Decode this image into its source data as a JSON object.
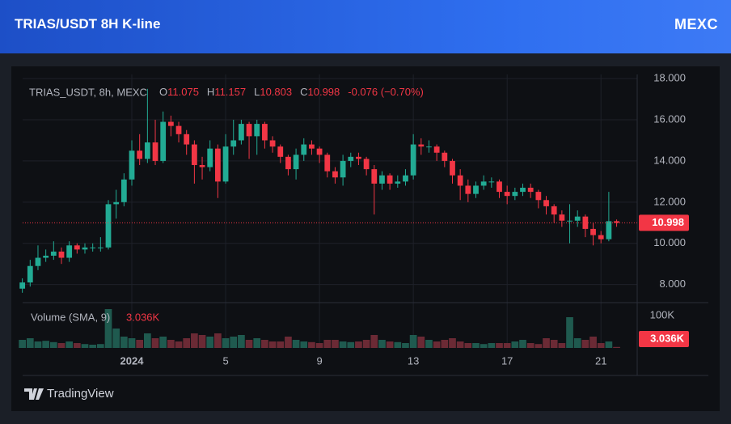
{
  "header": {
    "title": "TRIAS/USDT 8H K-line",
    "brand": "MEXC"
  },
  "chart_data": {
    "type": "candlestick",
    "symbol_label": "TRIAS_USDT, 8h, MEXC",
    "ohlc_letters": [
      "O",
      "H",
      "L",
      "C"
    ],
    "change_label": "-0.076 (−0.70%)",
    "up_color": "#22ab94",
    "down_color": "#f23645",
    "up_volume_color": "#1f5a4f",
    "down_volume_color": "#6b2a35",
    "open": [
      7.8,
      8.1,
      8.9,
      9.3,
      9.4,
      9.6,
      9.3,
      9.9,
      9.7,
      9.8,
      9.8,
      9.8,
      11.9,
      12.0,
      13.1,
      14.5,
      14.1,
      14.9,
      14.0,
      15.9,
      15.7,
      15.3,
      14.8,
      13.8,
      13.7,
      14.6,
      13.0,
      14.7,
      15.0,
      15.8,
      15.2,
      15.8,
      15.0,
      14.7,
      14.2,
      13.6,
      14.3,
      14.8,
      14.6,
      14.3,
      13.5,
      13.2,
      14.0,
      14.2,
      14.1,
      13.6,
      12.9,
      13.3,
      12.9,
      13.0,
      13.3,
      14.8,
      14.7,
      14.7,
      14.4,
      14.0,
      13.3,
      12.8,
      12.4,
      12.8,
      13.0,
      13.0,
      12.5,
      12.3,
      12.5,
      12.7,
      12.5,
      12.1,
      11.8,
      11.4,
      11.1,
      11.1,
      11.3,
      10.7,
      10.4,
      10.2,
      11.075
    ],
    "high": [
      8.3,
      9.2,
      9.9,
      9.7,
      10.1,
      9.8,
      10.1,
      10.0,
      10.0,
      10.0,
      10.3,
      12.1,
      12.6,
      13.4,
      15.0,
      15.3,
      17.5,
      16.0,
      16.4,
      16.2,
      15.9,
      15.5,
      15.0,
      14.2,
      15.0,
      14.8,
      15.3,
      16.0,
      16.0,
      15.9,
      16.0,
      15.9,
      15.2,
      14.8,
      14.3,
      14.6,
      15.1,
      15.0,
      14.7,
      14.4,
      13.7,
      14.3,
      14.4,
      14.4,
      14.2,
      13.8,
      13.5,
      13.4,
      13.3,
      13.6,
      15.3,
      15.1,
      15.0,
      14.8,
      14.5,
      14.1,
      13.6,
      13.1,
      13.0,
      13.3,
      13.2,
      13.1,
      12.8,
      12.7,
      12.9,
      12.9,
      12.6,
      12.3,
      11.9,
      11.6,
      11.9,
      11.6,
      11.4,
      11.0,
      10.6,
      12.5,
      11.157
    ],
    "low": [
      7.6,
      7.9,
      8.7,
      9.1,
      9.2,
      9.0,
      9.1,
      9.5,
      9.5,
      9.6,
      9.6,
      9.7,
      11.2,
      11.8,
      12.8,
      13.8,
      13.9,
      13.8,
      13.9,
      15.2,
      14.9,
      14.3,
      12.9,
      13.1,
      13.5,
      12.2,
      12.9,
      14.3,
      14.8,
      14.1,
      14.3,
      14.6,
      14.4,
      13.9,
      13.3,
      13.1,
      14.0,
      14.3,
      13.9,
      13.2,
      12.9,
      12.8,
      13.7,
      13.8,
      13.3,
      11.4,
      12.6,
      12.6,
      12.7,
      12.8,
      13.1,
      14.3,
      14.4,
      14.0,
      13.7,
      12.9,
      12.1,
      12.0,
      12.2,
      12.6,
      12.7,
      12.2,
      11.9,
      12.1,
      12.3,
      12.2,
      11.7,
      11.4,
      11.0,
      10.8,
      10.0,
      10.8,
      10.3,
      9.9,
      10.0,
      10.1,
      10.803
    ],
    "close": [
      8.1,
      8.9,
      9.3,
      9.4,
      9.6,
      9.3,
      9.9,
      9.7,
      9.8,
      9.8,
      9.8,
      11.9,
      12.0,
      13.1,
      14.5,
      14.1,
      14.9,
      14.0,
      15.9,
      15.7,
      15.3,
      14.8,
      13.8,
      13.7,
      14.6,
      13.0,
      14.7,
      15.0,
      15.8,
      15.2,
      15.8,
      15.0,
      14.7,
      14.2,
      13.6,
      14.3,
      14.8,
      14.6,
      14.3,
      13.5,
      13.2,
      14.0,
      14.2,
      14.1,
      13.6,
      12.9,
      13.3,
      12.9,
      13.0,
      13.3,
      14.8,
      14.7,
      14.7,
      14.4,
      14.0,
      13.3,
      12.8,
      12.4,
      12.8,
      13.0,
      13.0,
      12.5,
      12.3,
      12.5,
      12.7,
      12.5,
      12.1,
      11.8,
      11.4,
      11.1,
      11.1,
      11.3,
      10.7,
      10.4,
      10.2,
      11.074,
      10.998
    ],
    "volume_name": "Volume (SMA, 9)",
    "volume": [
      25,
      30,
      20,
      22,
      18,
      15,
      20,
      15,
      12,
      10,
      12,
      120,
      60,
      35,
      30,
      25,
      45,
      30,
      35,
      25,
      20,
      30,
      45,
      40,
      35,
      45,
      30,
      35,
      40,
      25,
      30,
      25,
      20,
      20,
      35,
      25,
      20,
      18,
      15,
      25,
      25,
      20,
      18,
      20,
      25,
      40,
      25,
      20,
      18,
      15,
      40,
      35,
      25,
      20,
      25,
      30,
      20,
      15,
      15,
      12,
      15,
      15,
      15,
      20,
      25,
      15,
      12,
      30,
      25,
      15,
      95,
      30,
      25,
      35,
      15,
      20,
      3.036
    ],
    "last_volume_label": "3.036K",
    "ylim": [
      7.2,
      18.2
    ],
    "yticks": [
      {
        "value": 8,
        "label": "8.000"
      },
      {
        "value": 10,
        "label": "10.000"
      },
      {
        "value": 12,
        "label": "12.000"
      },
      {
        "value": 14,
        "label": "14.000"
      },
      {
        "value": 16,
        "label": "16.000"
      },
      {
        "value": 18,
        "label": "18.000"
      }
    ],
    "volume_lim": [
      0,
      130
    ],
    "volume_ticks": [
      {
        "value": 100,
        "label": "100K"
      }
    ],
    "xticks": [
      {
        "value": 14,
        "label": "2024"
      },
      {
        "value": 26,
        "label": "5"
      },
      {
        "value": 38,
        "label": "9"
      },
      {
        "value": 50,
        "label": "13"
      },
      {
        "value": 62,
        "label": "17"
      },
      {
        "value": 74,
        "label": "21"
      }
    ],
    "grid": true,
    "footer": "TradingView"
  }
}
